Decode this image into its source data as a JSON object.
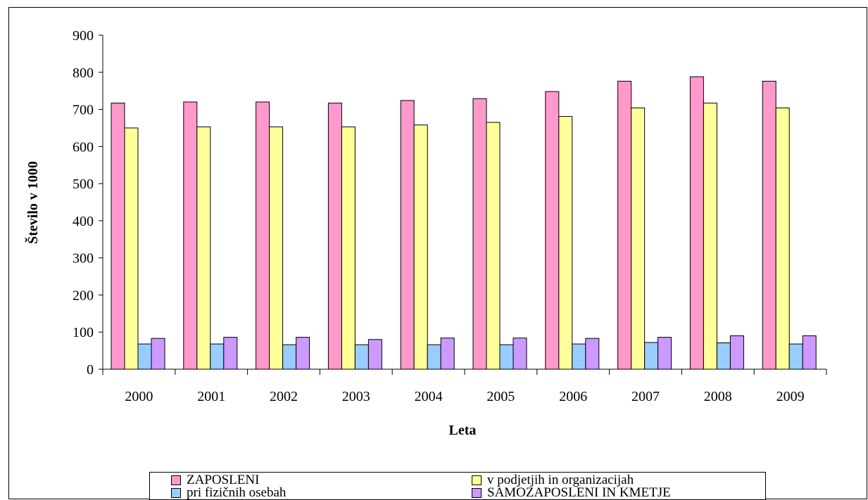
{
  "chart_data": {
    "type": "bar",
    "title": "",
    "xlabel": "Leta",
    "ylabel": "Število v 1000",
    "ylim": [
      0,
      900
    ],
    "yticks": [
      "0",
      "100",
      "200",
      "300",
      "400",
      "500",
      "600",
      "700",
      "800",
      "900"
    ],
    "categories": [
      "2000",
      "2001",
      "2002",
      "2003",
      "2004",
      "2005",
      "2006",
      "2007",
      "2008",
      "2009"
    ],
    "grid": false,
    "legend_position": "bottom",
    "series": [
      {
        "name": "ZAPOSLENI",
        "color": "#ff99cc",
        "values": [
          717,
          720,
          720,
          717,
          724,
          729,
          748,
          776,
          788,
          776
        ]
      },
      {
        "name": "v podjetjih in organizacijah",
        "color": "#ffff99",
        "values": [
          650,
          653,
          653,
          653,
          658,
          665,
          681,
          704,
          717,
          704
        ]
      },
      {
        "name": "pri fizičnih osebah",
        "color": "#99ccff",
        "values": [
          68,
          68,
          66,
          66,
          66,
          66,
          68,
          72,
          71,
          68
        ]
      },
      {
        "name": "SAMOZAPOSLENI IN KMETJE",
        "color": "#cc99ff",
        "values": [
          83,
          86,
          86,
          80,
          84,
          84,
          83,
          86,
          90,
          90
        ]
      }
    ]
  }
}
